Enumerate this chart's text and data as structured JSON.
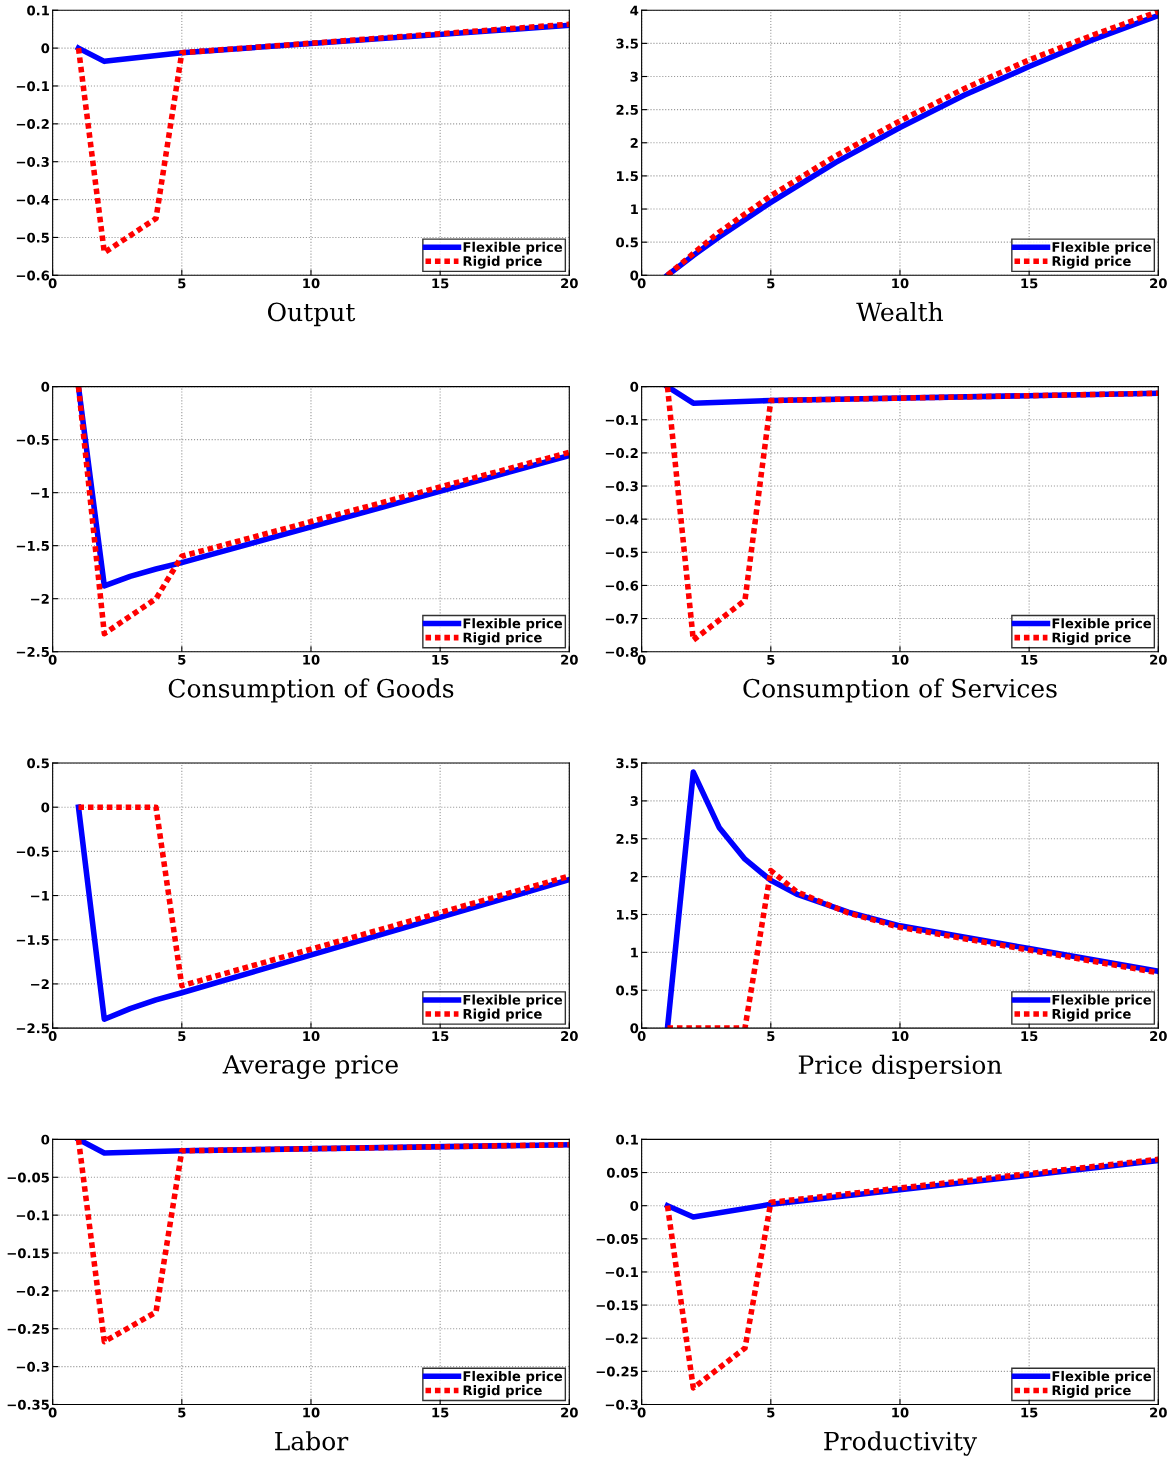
{
  "chart_data": [
    {
      "type": "line",
      "xlabel": "Output",
      "xlim": [
        0,
        20
      ],
      "xticks": [
        0,
        5,
        10,
        15,
        20
      ],
      "ylim": [
        -0.6,
        0.1
      ],
      "yticks": [
        {
          "value": -0.6,
          "label": "−0.6"
        },
        {
          "value": -0.5,
          "label": "−0.5"
        },
        {
          "value": -0.4,
          "label": "−0.4"
        },
        {
          "value": -0.3,
          "label": "−0.3"
        },
        {
          "value": -0.2,
          "label": "−0.2"
        },
        {
          "value": -0.1,
          "label": "−0.1"
        },
        0,
        0.1
      ],
      "grid": true,
      "legend": "bottom right",
      "series": [
        {
          "name": "Flexible price",
          "color": "#0000ff",
          "line_style": "solid",
          "x": [
            1,
            2,
            5,
            20
          ],
          "values": [
            0,
            -0.035,
            -0.012,
            0.06
          ]
        },
        {
          "name": "Rigid price",
          "color": "#ff0000",
          "line_style": "dotted",
          "x": [
            1,
            2,
            4,
            5,
            20
          ],
          "values": [
            0,
            -0.54,
            -0.45,
            -0.012,
            0.063
          ]
        }
      ]
    },
    {
      "type": "line",
      "xlabel": "Wealth",
      "xlim": [
        0,
        20
      ],
      "xticks": [
        0,
        5,
        10,
        15,
        20
      ],
      "ylim": [
        0,
        4
      ],
      "yticks": [
        0,
        0.5,
        1,
        1.5,
        2,
        2.5,
        3,
        3.5,
        4
      ],
      "grid": true,
      "legend": "bottom right",
      "series": [
        {
          "name": "Flexible price",
          "color": "#0000ff",
          "line_style": "solid",
          "x": [
            1,
            2,
            3,
            5,
            7.5,
            10,
            12.5,
            15,
            17.5,
            20
          ],
          "values": [
            0,
            0.3,
            0.58,
            1.1,
            1.7,
            2.23,
            2.72,
            3.15,
            3.56,
            3.92
          ]
        },
        {
          "name": "Rigid price",
          "color": "#ff0000",
          "line_style": "dotted",
          "x": [
            1,
            2,
            3,
            5,
            7.5,
            10,
            12.5,
            15,
            17.5,
            20
          ],
          "values": [
            0,
            0.33,
            0.65,
            1.2,
            1.8,
            2.33,
            2.82,
            3.25,
            3.63,
            3.98
          ]
        }
      ]
    },
    {
      "type": "line",
      "xlabel": "Consumption of Goods",
      "xlim": [
        0,
        20
      ],
      "xticks": [
        0,
        5,
        10,
        15,
        20
      ],
      "ylim": [
        -2.5,
        0
      ],
      "yticks": [
        {
          "value": -2.5,
          "label": "−2.5"
        },
        {
          "value": -2,
          "label": "−2"
        },
        {
          "value": -1.5,
          "label": "−1.5"
        },
        {
          "value": -1,
          "label": "−1"
        },
        {
          "value": -0.5,
          "label": "−0.5"
        },
        0
      ],
      "grid": true,
      "legend": "bottom right",
      "series": [
        {
          "name": "Flexible price",
          "color": "#0000ff",
          "line_style": "solid",
          "x": [
            1,
            2,
            3,
            4,
            5,
            20
          ],
          "values": [
            0,
            -1.88,
            -1.79,
            -1.72,
            -1.66,
            -0.65
          ]
        },
        {
          "name": "Rigid price",
          "color": "#ff0000",
          "line_style": "dotted",
          "x": [
            1,
            2,
            4,
            5,
            20
          ],
          "values": [
            0,
            -2.33,
            -2.0,
            -1.6,
            -0.62
          ]
        }
      ]
    },
    {
      "type": "line",
      "xlabel": "Consumption of Services",
      "xlim": [
        0,
        20
      ],
      "xticks": [
        0,
        5,
        10,
        15,
        20
      ],
      "ylim": [
        -0.8,
        0
      ],
      "yticks": [
        {
          "value": -0.8,
          "label": "−0.8"
        },
        {
          "value": -0.7,
          "label": "−0.7"
        },
        {
          "value": -0.6,
          "label": "−0.6"
        },
        {
          "value": -0.5,
          "label": "−0.5"
        },
        {
          "value": -0.4,
          "label": "−0.4"
        },
        {
          "value": -0.3,
          "label": "−0.3"
        },
        {
          "value": -0.2,
          "label": "−0.2"
        },
        {
          "value": -0.1,
          "label": "−0.1"
        },
        0
      ],
      "grid": true,
      "legend": "bottom right",
      "series": [
        {
          "name": "Flexible price",
          "color": "#0000ff",
          "line_style": "solid",
          "x": [
            1,
            2,
            5,
            20
          ],
          "values": [
            0,
            -0.05,
            -0.042,
            -0.02
          ]
        },
        {
          "name": "Rigid price",
          "color": "#ff0000",
          "line_style": "dotted",
          "x": [
            1,
            2,
            4,
            5,
            20
          ],
          "values": [
            0,
            -0.765,
            -0.645,
            -0.042,
            -0.02
          ]
        }
      ]
    },
    {
      "type": "line",
      "xlabel": "Average price",
      "xlim": [
        0,
        20
      ],
      "xticks": [
        0,
        5,
        10,
        15,
        20
      ],
      "ylim": [
        -2.5,
        0.5
      ],
      "yticks": [
        {
          "value": -2.5,
          "label": "−2.5"
        },
        {
          "value": -2,
          "label": "−2"
        },
        {
          "value": -1.5,
          "label": "−1.5"
        },
        {
          "value": -1,
          "label": "−1"
        },
        {
          "value": -0.5,
          "label": "−0.5"
        },
        0,
        0.5
      ],
      "grid": true,
      "legend": "bottom right",
      "series": [
        {
          "name": "Flexible price",
          "color": "#0000ff",
          "line_style": "solid",
          "x": [
            1,
            2,
            3,
            4,
            5,
            20
          ],
          "values": [
            0,
            -2.4,
            -2.28,
            -2.18,
            -2.1,
            -0.82
          ]
        },
        {
          "name": "Rigid price",
          "color": "#ff0000",
          "line_style": "dotted",
          "x": [
            1,
            4,
            5,
            20
          ],
          "values": [
            0,
            0,
            -2.02,
            -0.78
          ]
        }
      ]
    },
    {
      "type": "line",
      "xlabel": "Price dispersion",
      "xlim": [
        0,
        20
      ],
      "xticks": [
        0,
        5,
        10,
        15,
        20
      ],
      "ylim": [
        0,
        3.5
      ],
      "yticks": [
        0,
        0.5,
        1,
        1.5,
        2,
        2.5,
        3,
        3.5
      ],
      "grid": true,
      "legend": "bottom right",
      "series": [
        {
          "name": "Flexible price",
          "color": "#0000ff",
          "line_style": "solid",
          "x": [
            1,
            2,
            3,
            4,
            5,
            6,
            8,
            10,
            15,
            20
          ],
          "values": [
            0,
            3.38,
            2.65,
            2.23,
            1.95,
            1.77,
            1.53,
            1.35,
            1.05,
            0.75
          ]
        },
        {
          "name": "Rigid price",
          "color": "#ff0000",
          "line_style": "dotted",
          "x": [
            1,
            4,
            5,
            6,
            8,
            10,
            15,
            20
          ],
          "values": [
            0,
            0,
            2.08,
            1.8,
            1.52,
            1.33,
            1.03,
            0.73
          ]
        }
      ]
    },
    {
      "type": "line",
      "xlabel": "Labor",
      "xlim": [
        0,
        20
      ],
      "xticks": [
        0,
        5,
        10,
        15,
        20
      ],
      "ylim": [
        -0.35,
        0
      ],
      "yticks": [
        {
          "value": -0.35,
          "label": "−0.35"
        },
        {
          "value": -0.3,
          "label": "−0.3"
        },
        {
          "value": -0.25,
          "label": "−0.25"
        },
        {
          "value": -0.2,
          "label": "−0.2"
        },
        {
          "value": -0.15,
          "label": "−0.15"
        },
        {
          "value": -0.1,
          "label": "−0.1"
        },
        {
          "value": -0.05,
          "label": "−0.05"
        },
        0
      ],
      "grid": true,
      "legend": "bottom right",
      "series": [
        {
          "name": "Flexible price",
          "color": "#0000ff",
          "line_style": "solid",
          "x": [
            1,
            2,
            5,
            20
          ],
          "values": [
            0,
            -0.018,
            -0.015,
            -0.007
          ]
        },
        {
          "name": "Rigid price",
          "color": "#ff0000",
          "line_style": "dotted",
          "x": [
            1,
            2,
            4,
            5,
            20
          ],
          "values": [
            0,
            -0.267,
            -0.228,
            -0.015,
            -0.007
          ]
        }
      ]
    },
    {
      "type": "line",
      "xlabel": "Productivity",
      "xlim": [
        0,
        20
      ],
      "xticks": [
        0,
        5,
        10,
        15,
        20
      ],
      "ylim": [
        -0.3,
        0.1
      ],
      "yticks": [
        {
          "value": -0.3,
          "label": "−0.3"
        },
        {
          "value": -0.25,
          "label": "−0.25"
        },
        {
          "value": -0.2,
          "label": "−0.2"
        },
        {
          "value": -0.15,
          "label": "−0.15"
        },
        {
          "value": -0.1,
          "label": "−0.1"
        },
        {
          "value": -0.05,
          "label": "−0.05"
        },
        0,
        0.05,
        0.1
      ],
      "grid": true,
      "legend": "bottom right",
      "series": [
        {
          "name": "Flexible price",
          "color": "#0000ff",
          "line_style": "solid",
          "x": [
            1,
            2,
            5,
            20
          ],
          "values": [
            0,
            -0.017,
            0.002,
            0.068
          ]
        },
        {
          "name": "Rigid price",
          "color": "#ff0000",
          "line_style": "dotted",
          "x": [
            1,
            2,
            4,
            5,
            20
          ],
          "values": [
            0,
            -0.275,
            -0.215,
            0.005,
            0.07
          ]
        }
      ]
    }
  ]
}
